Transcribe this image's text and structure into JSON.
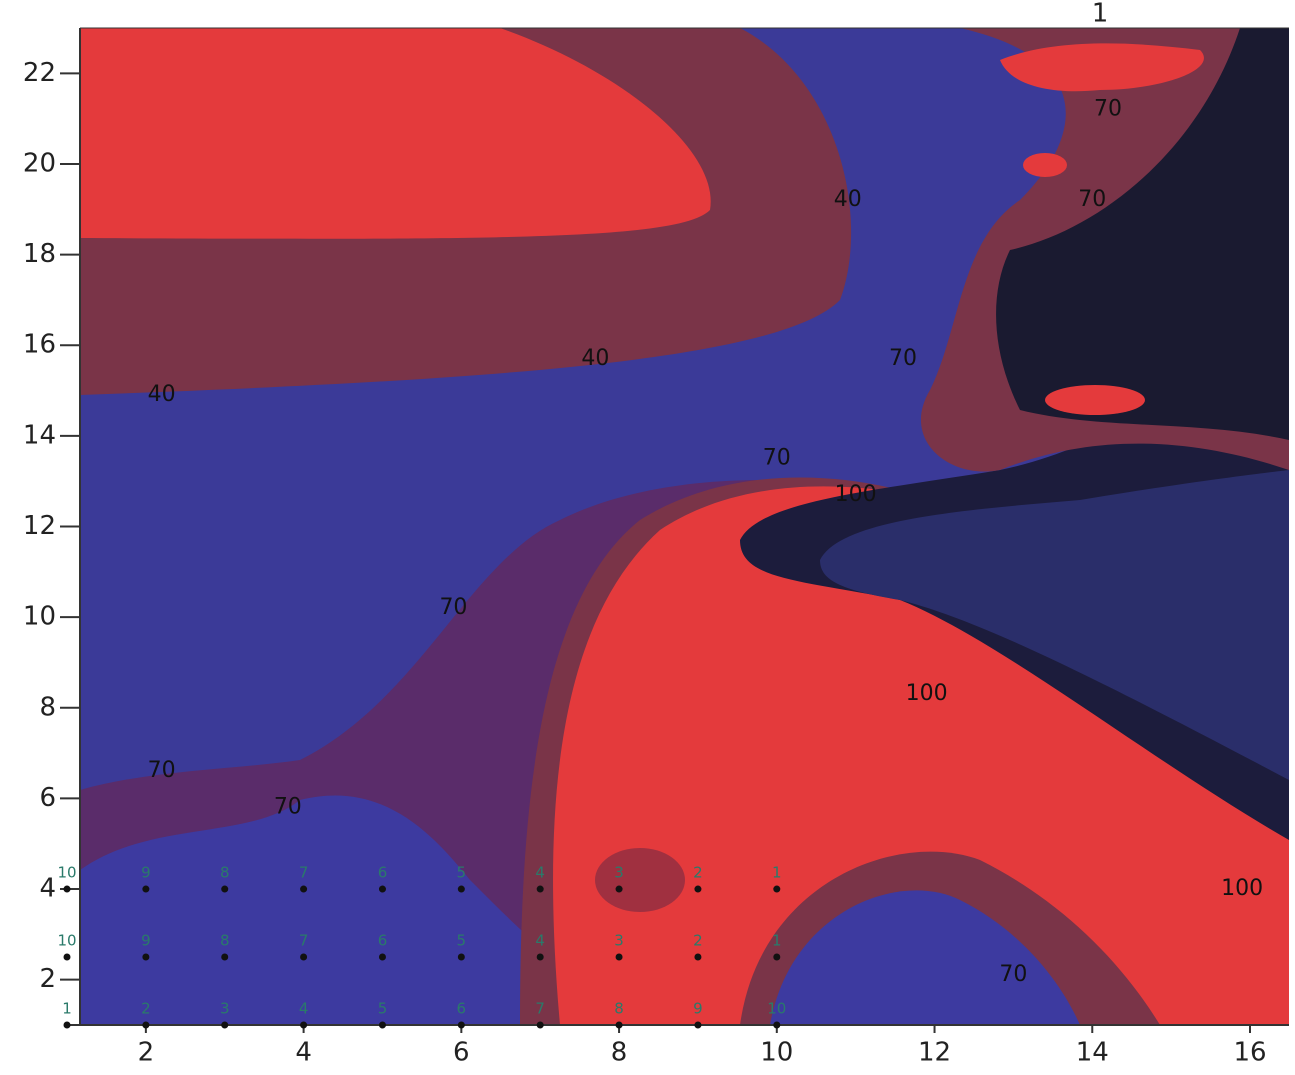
{
  "chart_data": {
    "type": "contour",
    "xlim": [
      1,
      16.5
    ],
    "ylim": [
      1,
      23
    ],
    "xticks": [
      2,
      4,
      6,
      8,
      10,
      12,
      14,
      16
    ],
    "yticks": [
      2,
      4,
      6,
      8,
      10,
      12,
      14,
      16,
      18,
      20,
      22
    ],
    "top_label": "1",
    "contour_labels": [
      {
        "text": "40",
        "x": 2.2,
        "y": 14.9
      },
      {
        "text": "40",
        "x": 7.7,
        "y": 15.7
      },
      {
        "text": "40",
        "x": 10.9,
        "y": 19.2
      },
      {
        "text": "70",
        "x": 2.2,
        "y": 6.6
      },
      {
        "text": "70",
        "x": 10.0,
        "y": 13.5
      },
      {
        "text": "70",
        "x": 5.9,
        "y": 10.2
      },
      {
        "text": "70",
        "x": 3.8,
        "y": 5.8
      },
      {
        "text": "70",
        "x": 11.6,
        "y": 15.7
      },
      {
        "text": "70",
        "x": 14.2,
        "y": 21.2
      },
      {
        "text": "70",
        "x": 14.0,
        "y": 19.2
      },
      {
        "text": "70",
        "x": 13.0,
        "y": 2.1
      },
      {
        "text": "100",
        "x": 11.0,
        "y": 12.7
      },
      {
        "text": "100",
        "x": 11.9,
        "y": 8.3
      },
      {
        "text": "100",
        "x": 15.9,
        "y": 4.0
      }
    ],
    "stations": {
      "x": [
        1,
        2,
        3,
        4,
        5,
        6,
        7,
        8,
        9,
        10,
        1,
        2,
        3,
        4,
        5,
        6,
        7,
        8,
        9,
        10,
        1,
        2,
        3,
        4,
        5,
        6,
        7,
        8,
        9,
        10
      ],
      "y": [
        1,
        1,
        1,
        1,
        1,
        1,
        1,
        1,
        1,
        1,
        2.5,
        2.5,
        2.5,
        2.5,
        2.5,
        2.5,
        2.5,
        2.5,
        2.5,
        2.5,
        4,
        4,
        4,
        4,
        4,
        4,
        4,
        4,
        4,
        4
      ],
      "labels": [
        "1",
        "2",
        "3",
        "4",
        "5",
        "6",
        "7",
        "8",
        "9",
        "10",
        "10",
        "9",
        "8",
        "7",
        "6",
        "5",
        "4",
        "3",
        "2",
        "1",
        "10",
        "9",
        "8",
        "7",
        "6",
        "5",
        "4",
        "3",
        "2",
        "1"
      ]
    }
  }
}
